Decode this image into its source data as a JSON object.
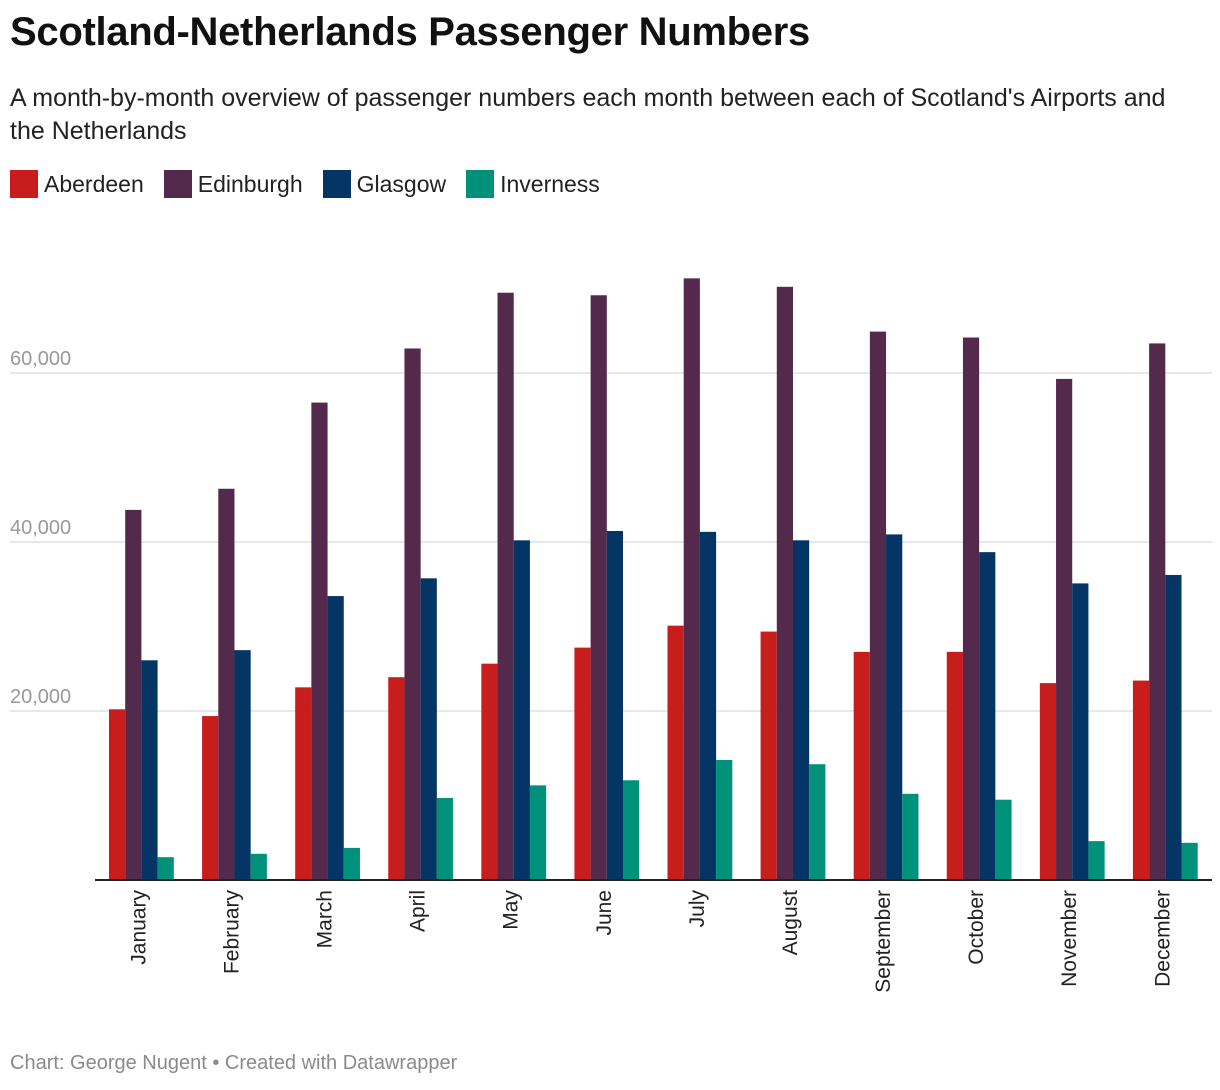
{
  "title": "Scotland-Netherlands Passenger Numbers",
  "subtitle": "A month-by-month overview of passenger numbers each month between each of Scotland's Airports and the Netherlands",
  "footer": {
    "credit": "Chart: George Nugent",
    "separator": " • ",
    "tool": "Created with Datawrapper"
  },
  "colors": {
    "aberdeen": "#c71e1d",
    "edinburgh": "#542a4c",
    "glasgow": "#043565",
    "inverness": "#00917a"
  },
  "chart_data": {
    "type": "bar",
    "title": "Scotland-Netherlands Passenger Numbers",
    "xlabel": "",
    "ylabel": "",
    "ylim": [
      0,
      72000
    ],
    "yticks": [
      20000,
      40000,
      60000
    ],
    "ytick_labels": [
      "20,000",
      "40,000",
      "60,000"
    ],
    "grid": true,
    "legend_position": "top-left",
    "categories": [
      "January",
      "February",
      "March",
      "April",
      "May",
      "June",
      "July",
      "August",
      "September",
      "October",
      "November",
      "December"
    ],
    "series": [
      {
        "name": "Aberdeen",
        "color": "#c71e1d",
        "values": [
          20200,
          19400,
          22800,
          24000,
          25600,
          27500,
          30100,
          29400,
          27000,
          27000,
          23300,
          23600
        ]
      },
      {
        "name": "Edinburgh",
        "color": "#542a4c",
        "values": [
          43800,
          46300,
          56500,
          62900,
          69500,
          69200,
          71200,
          70200,
          64900,
          64200,
          59300,
          63500
        ]
      },
      {
        "name": "Glasgow",
        "color": "#043565",
        "values": [
          26000,
          27200,
          33600,
          35700,
          40200,
          41300,
          41200,
          40200,
          40900,
          38800,
          35100,
          36100
        ]
      },
      {
        "name": "Inverness",
        "color": "#00917a",
        "values": [
          2700,
          3100,
          3800,
          9700,
          11200,
          11800,
          14200,
          13700,
          10200,
          9500,
          4600,
          4400
        ]
      }
    ]
  }
}
